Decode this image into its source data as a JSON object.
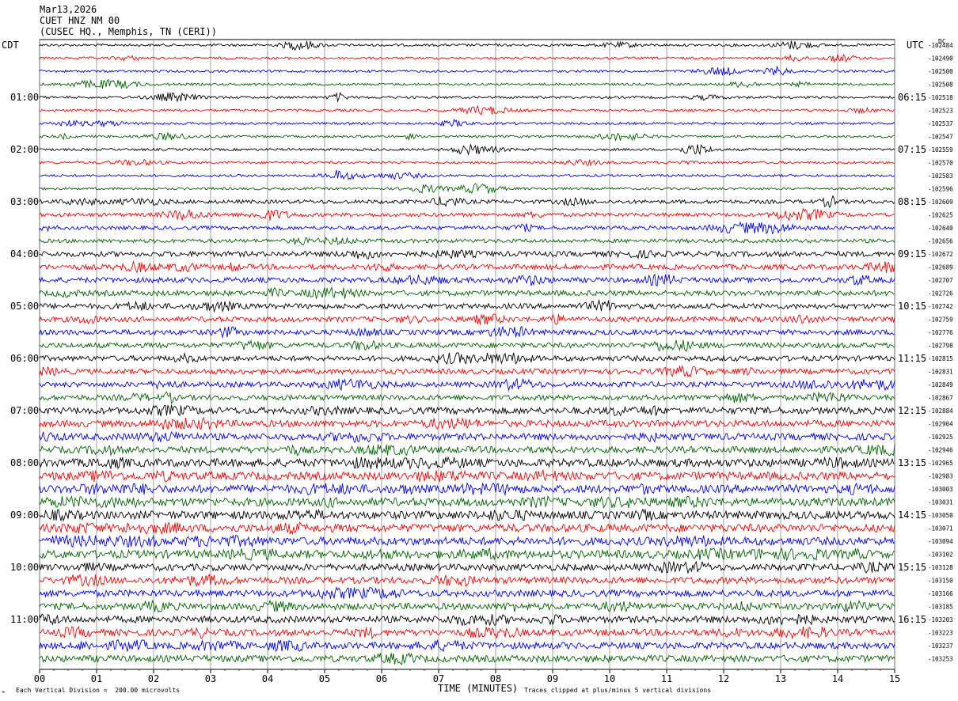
{
  "header": {
    "date": "Mar13,2026",
    "station": "CUET HNZ NM 00",
    "location": "(CUSEC HQ., Memphis, TN (CERI))"
  },
  "left_zone_label": "CDT",
  "right_zone_label": "UTC",
  "right_top_label": "DC",
  "footer": {
    "scale_note": "Each Vertical Division =  200.00 microvolts",
    "xlabel": "TIME (MINUTES)",
    "clip_note": "Traces clipped at plus/minus 5 vertical divisions"
  },
  "chart_data": {
    "type": "line",
    "title": "CUET HNZ NM 00",
    "xlabel": "TIME (MINUTES)",
    "ylabel": "",
    "xlim": [
      0,
      15
    ],
    "x_ticks": [
      "00",
      "01",
      "02",
      "03",
      "04",
      "05",
      "06",
      "07",
      "08",
      "09",
      "10",
      "11",
      "12",
      "13",
      "14",
      "15"
    ],
    "trace_colors": [
      "#000000",
      "#ff0000",
      "#0000ff",
      "#006400"
    ],
    "grid": "vertical lines at each minute",
    "left_hour_labels": [
      "01:00",
      "02:00",
      "03:00",
      "04:00",
      "05:00",
      "06:00",
      "07:00",
      "08:00",
      "09:00",
      "10:00",
      "11:00"
    ],
    "right_hour_labels": [
      "06:15",
      "07:15",
      "08:15",
      "09:15",
      "10:15",
      "11:15",
      "12:15",
      "13:15",
      "14:15",
      "15:15",
      "16:15"
    ],
    "trace_offsets": [
      "-102484",
      "-102490",
      "-102500",
      "-102508",
      "-102518",
      "-102523",
      "-102537",
      "-102547",
      "-102559",
      "-102570",
      "-102583",
      "-102596",
      "-102609",
      "-102625",
      "-102640",
      "-102656",
      "-102672",
      "-102689",
      "-102707",
      "-102726",
      "-102742",
      "-102759",
      "-102776",
      "-102798",
      "-102815",
      "-102831",
      "-102849",
      "-102867",
      "-102884",
      "-102904",
      "-102925",
      "-102946",
      "-102965",
      "-102983",
      "-103003",
      "-103031",
      "-103050",
      "-103071",
      "-103094",
      "-103102",
      "-103128",
      "-103150",
      "-103166",
      "-103185",
      "-103203",
      "-103223",
      "-103237",
      "-103253"
    ],
    "trace_amplitude_levels": [
      1,
      1,
      1,
      1,
      1,
      1,
      1,
      1,
      1,
      1,
      1,
      1,
      2,
      2,
      2,
      2,
      3,
      3,
      3,
      3,
      3,
      3,
      3,
      3,
      3,
      3,
      3,
      3,
      4,
      4,
      4,
      4,
      5,
      5,
      5,
      5,
      5,
      5,
      5,
      5,
      4,
      4,
      4,
      4,
      4,
      4,
      4,
      4
    ]
  }
}
